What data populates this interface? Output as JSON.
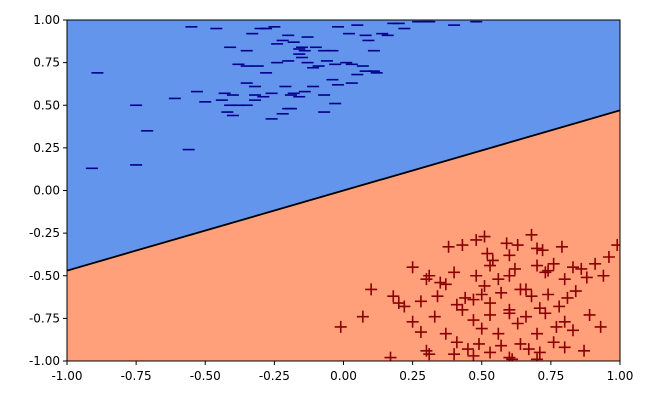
{
  "chart_data": {
    "type": "scatter",
    "title": "",
    "xlabel": "",
    "ylabel": "",
    "xlim": [
      -1.0,
      1.0
    ],
    "ylim": [
      -1.0,
      1.0
    ],
    "grid": false,
    "xticks": [
      "-1.00",
      "-0.75",
      "-0.50",
      "-0.25",
      "0.00",
      "0.25",
      "0.50",
      "0.75",
      "1.00"
    ],
    "yticks": [
      "-1.00",
      "-0.75",
      "-0.50",
      "-0.25",
      "0.00",
      "0.25",
      "0.50",
      "0.75",
      "1.00"
    ],
    "regions": [
      {
        "side": "above",
        "color": "#6495ed"
      },
      {
        "side": "below",
        "color": "#ffa07a"
      }
    ],
    "decision_boundary": {
      "x": [
        -1.0,
        1.0
      ],
      "y": [
        -0.47,
        0.47
      ],
      "color": "#000000"
    },
    "series": [
      {
        "marker": "_",
        "color": "#00008b",
        "x": [
          -0.55,
          -0.46,
          -0.41,
          -0.35,
          -0.33,
          -0.3,
          -0.28,
          -0.25,
          -0.24,
          -0.22,
          -0.2,
          -0.18,
          -0.16,
          -0.15,
          -0.13,
          -0.1,
          -0.07,
          -0.04,
          -0.02,
          0.02,
          0.05,
          0.08,
          0.09,
          0.11,
          0.14,
          0.16,
          0.18,
          0.2,
          0.22,
          0.27,
          0.3,
          0.31,
          0.4,
          0.48,
          -0.38,
          -0.35,
          -0.31,
          -0.28,
          -0.24,
          -0.2,
          -0.16,
          -0.15,
          -0.14,
          -0.13,
          -0.11,
          -0.09,
          -0.06,
          -0.03,
          0.01,
          0.03,
          0.07,
          0.11,
          -0.43,
          -0.4,
          -0.38,
          -0.35,
          -0.32,
          -0.29,
          -0.26,
          -0.21,
          -0.18,
          -0.16,
          -0.14,
          -0.11,
          -0.07,
          -0.04,
          -0.02,
          0.03,
          0.05,
          0.08,
          0.12,
          -0.61,
          -0.53,
          -0.5,
          -0.44,
          -0.41,
          -0.35,
          -0.32,
          -0.26,
          -0.22,
          -0.19,
          -0.07,
          -0.03,
          -0.42,
          -0.4,
          -0.32,
          -0.2,
          -0.19,
          -0.75,
          -0.71,
          -0.89,
          -0.91,
          -0.75,
          -0.56
        ],
        "y": [
          0.96,
          0.95,
          0.84,
          0.82,
          0.92,
          0.95,
          0.95,
          0.96,
          0.86,
          0.88,
          0.91,
          0.87,
          0.83,
          0.84,
          0.9,
          0.84,
          0.82,
          0.82,
          0.96,
          0.92,
          0.97,
          0.91,
          0.88,
          0.82,
          0.92,
          0.91,
          0.98,
          0.98,
          0.95,
          0.99,
          0.99,
          0.99,
          0.97,
          0.99,
          0.74,
          0.73,
          0.73,
          0.69,
          0.75,
          0.76,
          0.8,
          0.78,
          0.82,
          0.75,
          0.72,
          0.73,
          0.76,
          0.74,
          0.75,
          0.74,
          0.73,
          0.7,
          0.57,
          0.56,
          0.5,
          0.5,
          0.53,
          0.55,
          0.57,
          0.61,
          0.57,
          0.55,
          0.58,
          0.61,
          0.56,
          0.65,
          0.62,
          0.63,
          0.68,
          0.7,
          0.69,
          0.54,
          0.58,
          0.52,
          0.53,
          0.5,
          0.63,
          0.61,
          0.42,
          0.45,
          0.48,
          0.46,
          0.51,
          0.46,
          0.44,
          0.56,
          0.48,
          0.56,
          0.5,
          0.35,
          0.69,
          0.13,
          0.15,
          0.24
        ]
      },
      {
        "marker": "+",
        "color": "#8b0000",
        "x": [
          0.38,
          0.43,
          0.48,
          0.51,
          0.52,
          0.54,
          0.59,
          0.6,
          0.63,
          0.68,
          0.7,
          0.72,
          0.74,
          0.79,
          0.86,
          0.96,
          0.99,
          0.3,
          0.35,
          0.4,
          0.48,
          0.51,
          0.53,
          0.56,
          0.6,
          0.62,
          0.66,
          0.7,
          0.73,
          0.76,
          0.8,
          0.83,
          0.88,
          0.91,
          0.94,
          0.25,
          0.31,
          0.37,
          0.2,
          0.22,
          0.28,
          0.34,
          0.41,
          0.44,
          0.47,
          0.5,
          0.53,
          0.57,
          0.6,
          0.64,
          0.68,
          0.71,
          0.74,
          0.78,
          0.81,
          0.84,
          0.1,
          0.07,
          0.18,
          -0.01,
          0.25,
          0.28,
          0.33,
          0.37,
          0.43,
          0.47,
          0.5,
          0.53,
          0.56,
          0.6,
          0.63,
          0.66,
          0.7,
          0.73,
          0.77,
          0.8,
          0.83,
          0.89,
          0.93,
          0.3,
          0.31,
          0.41,
          0.45,
          0.49,
          0.53,
          0.57,
          0.6,
          0.64,
          0.67,
          0.71,
          0.76,
          0.8,
          0.87,
          0.17,
          0.4,
          0.47,
          0.61,
          0.7
        ],
        "y": [
          -0.33,
          -0.32,
          -0.29,
          -0.27,
          -0.37,
          -0.41,
          -0.31,
          -0.38,
          -0.32,
          -0.26,
          -0.34,
          -0.35,
          -0.47,
          -0.33,
          -0.46,
          -0.39,
          -0.32,
          -0.52,
          -0.54,
          -0.48,
          -0.5,
          -0.56,
          -0.44,
          -0.52,
          -0.5,
          -0.46,
          -0.58,
          -0.44,
          -0.48,
          -0.43,
          -0.52,
          -0.45,
          -0.51,
          -0.43,
          -0.5,
          -0.45,
          -0.5,
          -0.55,
          -0.66,
          -0.68,
          -0.65,
          -0.62,
          -0.67,
          -0.63,
          -0.64,
          -0.61,
          -0.66,
          -0.6,
          -0.7,
          -0.58,
          -0.62,
          -0.69,
          -0.61,
          -0.68,
          -0.63,
          -0.59,
          -0.58,
          -0.74,
          -0.62,
          -0.8,
          -0.77,
          -0.83,
          -0.74,
          -0.84,
          -0.7,
          -0.76,
          -0.81,
          -0.73,
          -0.84,
          -0.72,
          -0.78,
          -0.74,
          -0.84,
          -0.72,
          -0.8,
          -0.77,
          -0.82,
          -0.73,
          -0.8,
          -0.94,
          -0.96,
          -0.89,
          -0.93,
          -0.9,
          -0.95,
          -0.91,
          -0.98,
          -0.9,
          -0.93,
          -0.95,
          -0.89,
          -0.92,
          -0.94,
          -0.98,
          -0.96,
          -0.97,
          -0.99,
          -0.99
        ]
      }
    ]
  }
}
